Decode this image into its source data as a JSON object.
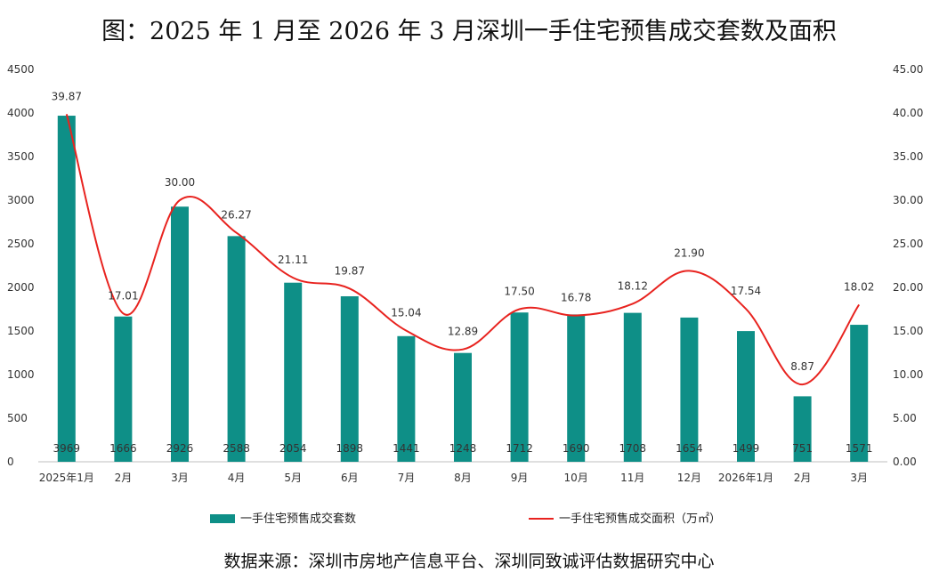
{
  "chart_data": {
    "type": "bar",
    "title": "图：2025 年 1 月至 2026 年 3 月深圳一手住宅预售成交套数及面积",
    "categories": [
      "2025年1月",
      "2月",
      "3月",
      "4月",
      "5月",
      "6月",
      "7月",
      "8月",
      "9月",
      "10月",
      "11月",
      "12月",
      "2026年1月",
      "2月",
      "3月"
    ],
    "series": [
      {
        "name": "一手住宅预售成交套数",
        "type": "bar",
        "axis": "left",
        "color": "#0e8f87",
        "values": [
          3969,
          1666,
          2926,
          2588,
          2054,
          1898,
          1441,
          1248,
          1712,
          1690,
          1708,
          1654,
          1499,
          751,
          1571
        ],
        "labels": [
          "3969",
          "1666",
          "2926",
          "2588",
          "2054",
          "1898",
          "1441",
          "1248",
          "1712",
          "1690",
          "1708",
          "1654",
          "1499",
          "751",
          "1571"
        ]
      },
      {
        "name": "一手住宅预售成交面积（万㎡）",
        "type": "line",
        "axis": "right",
        "color": "#e8231f",
        "values": [
          39.87,
          17.01,
          30.0,
          26.27,
          21.11,
          19.87,
          15.04,
          12.89,
          17.5,
          16.78,
          18.12,
          21.9,
          17.54,
          8.87,
          18.02
        ],
        "labels": [
          "39.87",
          "17.01",
          "30.00",
          "26.27",
          "21.11",
          "19.87",
          "15.04",
          "12.89",
          "17.50",
          "16.78",
          "18.12",
          "21.90",
          "17.54",
          "8.87",
          "18.02"
        ]
      }
    ],
    "y_left": {
      "range": [
        0,
        4500
      ],
      "ticks": [
        "0",
        "500",
        "1000",
        "1500",
        "2000",
        "2500",
        "3000",
        "3500",
        "4000",
        "4500"
      ]
    },
    "y_right": {
      "range": [
        0,
        45
      ],
      "ticks": [
        "0.00",
        "5.00",
        "10.00",
        "15.00",
        "20.00",
        "25.00",
        "30.00",
        "35.00",
        "40.00",
        "45.00"
      ]
    },
    "grid": false,
    "legend_position": "bottom",
    "source": "数据来源：深圳市房地产信息平台、深圳同致诚评估数据研究中心"
  }
}
